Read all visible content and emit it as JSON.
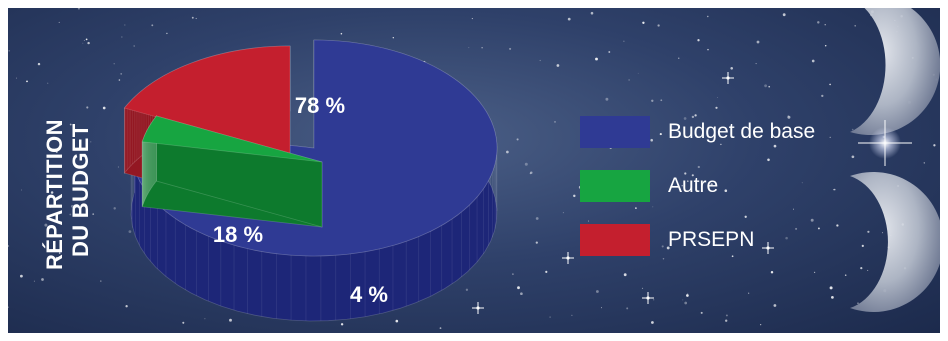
{
  "chart_data": {
    "type": "pie",
    "title": "RÉPARTITION DU BUDGET",
    "title_lines": [
      "RÉPARTITION",
      "DU BUDGET"
    ],
    "slices": [
      {
        "label": "Budget de base",
        "value": 78,
        "value_label": "78 %",
        "color": "#2f3a94",
        "side_color": "#1d2678"
      },
      {
        "label": "Autre",
        "value": 4,
        "value_label": "4 %",
        "color": "#17a541",
        "side_color": "#0d7a2d"
      },
      {
        "label": "PRSEPN",
        "value": 18,
        "value_label": "18 %",
        "color": "#c41f2e",
        "side_color": "#931722"
      }
    ],
    "legend_position": "right",
    "style": "3d-exploded"
  }
}
